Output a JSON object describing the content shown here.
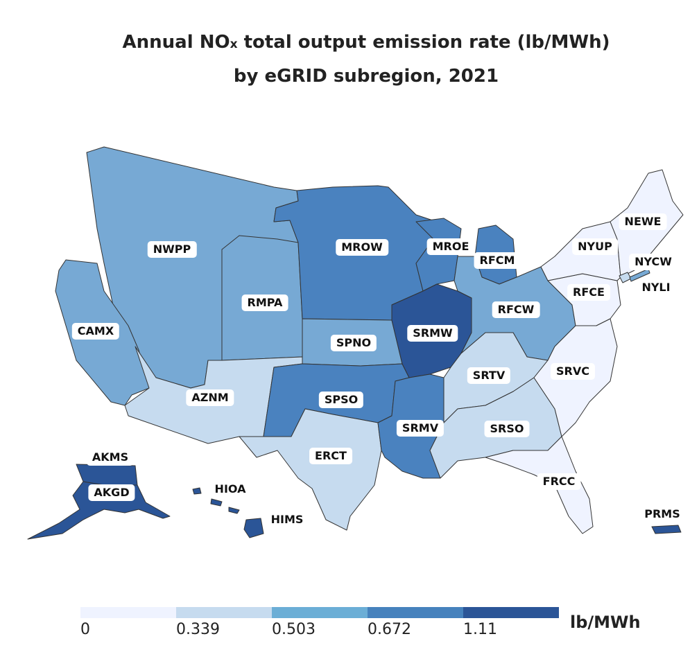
{
  "title": {
    "line1_pre": "Annual NO",
    "line1_sub": "x",
    "line1_post": " total output emission rate (lb/MWh)",
    "line2": "by eGRID subregion, 2021"
  },
  "legend": {
    "unit": "lb/MWh",
    "ticks": [
      "0",
      "0.339",
      "0.503",
      "0.672",
      "1.11"
    ],
    "colors": [
      "#eff3ff",
      "#c6dbef",
      "#6baed6",
      "#4682bd",
      "#2b5597"
    ]
  },
  "colors": {
    "bin0": "#eff3ff",
    "bin1": "#c6dbef",
    "bin2": "#77a9d4",
    "bin3": "#4a82bf",
    "bin4": "#2b5597",
    "border": "#333333"
  },
  "regions": {
    "NWPP": {
      "label": "NWPP",
      "bin": 2
    },
    "CAMX": {
      "label": "CAMX",
      "bin": 2
    },
    "RMPA": {
      "label": "RMPA",
      "bin": 2
    },
    "AZNM": {
      "label": "AZNM",
      "bin": 1
    },
    "MROW": {
      "label": "MROW",
      "bin": 3
    },
    "MROE": {
      "label": "MROE",
      "bin": 3
    },
    "SPNO": {
      "label": "SPNO",
      "bin": 2
    },
    "SPSO": {
      "label": "SPSO",
      "bin": 3
    },
    "ERCT": {
      "label": "ERCT",
      "bin": 1
    },
    "SRMW": {
      "label": "SRMW",
      "bin": 4
    },
    "SRMV": {
      "label": "SRMV",
      "bin": 3
    },
    "RFCM": {
      "label": "RFCM",
      "bin": 3
    },
    "RFCW": {
      "label": "RFCW",
      "bin": 2
    },
    "RFCE": {
      "label": "RFCE",
      "bin": 0
    },
    "SRTV": {
      "label": "SRTV",
      "bin": 1
    },
    "SRSO": {
      "label": "SRSO",
      "bin": 1
    },
    "SRVC": {
      "label": "SRVC",
      "bin": 0
    },
    "FRCC": {
      "label": "FRCC",
      "bin": 0
    },
    "NYUP": {
      "label": "NYUP",
      "bin": 0
    },
    "NEWE": {
      "label": "NEWE",
      "bin": 0
    },
    "NYCW": {
      "label": "NYCW",
      "bin": 1
    },
    "NYLI": {
      "label": "NYLI",
      "bin": 2
    },
    "AKMS": {
      "label": "AKMS",
      "bin": 4
    },
    "AKGD": {
      "label": "AKGD",
      "bin": 4
    },
    "HIOA": {
      "label": "HIOA",
      "bin": 4
    },
    "HIMS": {
      "label": "HIMS",
      "bin": 4
    },
    "PRMS": {
      "label": "PRMS",
      "bin": 4
    }
  }
}
